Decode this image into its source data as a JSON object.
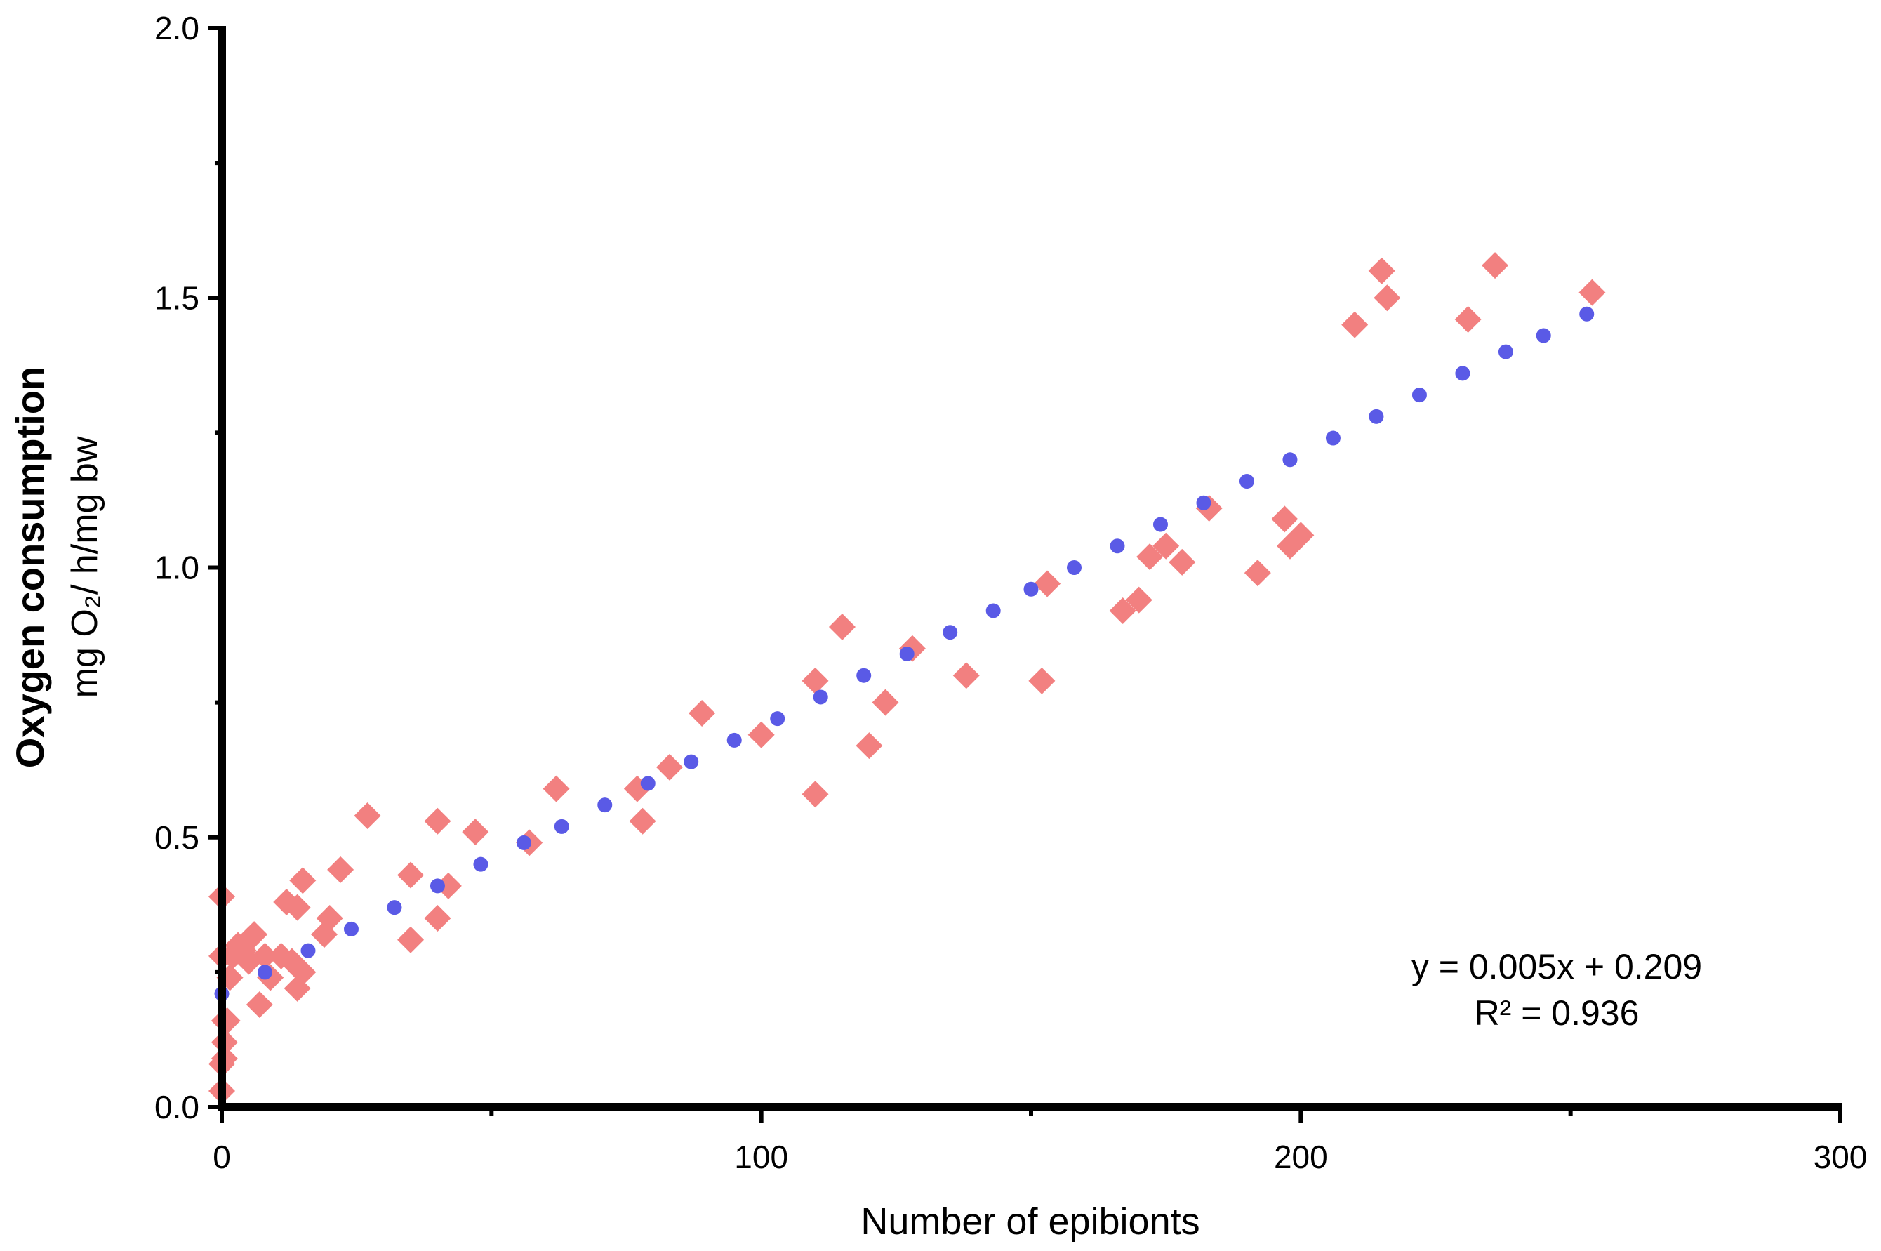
{
  "chart_data": {
    "type": "scatter",
    "xlabel": "Number of epibionts",
    "ylabel": "Oxygen consumption",
    "ylabel_unit": "mg O₂/ h/mg bw",
    "xlim": [
      0,
      300
    ],
    "ylim": [
      0,
      2.0
    ],
    "x_ticks": [
      0,
      100,
      200,
      300
    ],
    "y_ticks": [
      0.0,
      0.5,
      1.0,
      1.5,
      2.0
    ],
    "x_tick_labels": [
      "0",
      "100",
      "200",
      "300"
    ],
    "y_tick_labels": [
      "0.0",
      "0.5",
      "1.0",
      "1.5",
      "2.0"
    ],
    "grid": false,
    "annotation": {
      "equation": "y = 0.005x + 0.209",
      "r_squared": "R² = 0.936"
    },
    "series": [
      {
        "marker": "diamond",
        "color": "#F28080",
        "points": [
          [
            0,
            0.39
          ],
          [
            0,
            0.28
          ],
          [
            0.5,
            0.16
          ],
          [
            0.5,
            0.12
          ],
          [
            0.5,
            0.09
          ],
          [
            0,
            0.08
          ],
          [
            0,
            0.03
          ],
          [
            1,
            0.16
          ],
          [
            1.5,
            0.24
          ],
          [
            2,
            0.28
          ],
          [
            3,
            0.3
          ],
          [
            4,
            0.29
          ],
          [
            5,
            0.31
          ],
          [
            5,
            0.27
          ],
          [
            6,
            0.32
          ],
          [
            7,
            0.19
          ],
          [
            8,
            0.28
          ],
          [
            9,
            0.24
          ],
          [
            11,
            0.28
          ],
          [
            12,
            0.38
          ],
          [
            13,
            0.27
          ],
          [
            14,
            0.37
          ],
          [
            14,
            0.22
          ],
          [
            15,
            0.42
          ],
          [
            15,
            0.25
          ],
          [
            19,
            0.32
          ],
          [
            20,
            0.35
          ],
          [
            22,
            0.44
          ],
          [
            27,
            0.54
          ],
          [
            35,
            0.43
          ],
          [
            35,
            0.31
          ],
          [
            40,
            0.53
          ],
          [
            40,
            0.35
          ],
          [
            42,
            0.41
          ],
          [
            47,
            0.51
          ],
          [
            57,
            0.49
          ],
          [
            62,
            0.59
          ],
          [
            77,
            0.59
          ],
          [
            78,
            0.53
          ],
          [
            83,
            0.63
          ],
          [
            89,
            0.73
          ],
          [
            100,
            0.69
          ],
          [
            110,
            0.79
          ],
          [
            110,
            0.58
          ],
          [
            115,
            0.89
          ],
          [
            120,
            0.67
          ],
          [
            123,
            0.75
          ],
          [
            128,
            0.85
          ],
          [
            138,
            0.8
          ],
          [
            152,
            0.79
          ],
          [
            153,
            0.97
          ],
          [
            167,
            0.92
          ],
          [
            170,
            0.94
          ],
          [
            172,
            1.02
          ],
          [
            175,
            1.04
          ],
          [
            178,
            1.01
          ],
          [
            183,
            1.11
          ],
          [
            192,
            0.99
          ],
          [
            197,
            1.09
          ],
          [
            198,
            1.04
          ],
          [
            200,
            1.06
          ],
          [
            210,
            1.45
          ],
          [
            215,
            1.55
          ],
          [
            216,
            1.5
          ],
          [
            231,
            1.46
          ],
          [
            236,
            1.56
          ],
          [
            254,
            1.51
          ]
        ]
      },
      {
        "marker": "circle",
        "color": "#5A5AE6",
        "points": [
          [
            0,
            0.21
          ],
          [
            8,
            0.25
          ],
          [
            16,
            0.29
          ],
          [
            24,
            0.33
          ],
          [
            32,
            0.37
          ],
          [
            40,
            0.41
          ],
          [
            48,
            0.45
          ],
          [
            56,
            0.49
          ],
          [
            63,
            0.52
          ],
          [
            71,
            0.56
          ],
          [
            79,
            0.6
          ],
          [
            87,
            0.64
          ],
          [
            95,
            0.68
          ],
          [
            103,
            0.72
          ],
          [
            111,
            0.76
          ],
          [
            119,
            0.8
          ],
          [
            127,
            0.84
          ],
          [
            135,
            0.88
          ],
          [
            143,
            0.92
          ],
          [
            150,
            0.96
          ],
          [
            158,
            1.0
          ],
          [
            166,
            1.04
          ],
          [
            174,
            1.08
          ],
          [
            182,
            1.12
          ],
          [
            190,
            1.16
          ],
          [
            198,
            1.2
          ],
          [
            206,
            1.24
          ],
          [
            214,
            1.28
          ],
          [
            222,
            1.32
          ],
          [
            230,
            1.36
          ],
          [
            238,
            1.4
          ],
          [
            245,
            1.43
          ],
          [
            253,
            1.47
          ]
        ]
      }
    ]
  }
}
